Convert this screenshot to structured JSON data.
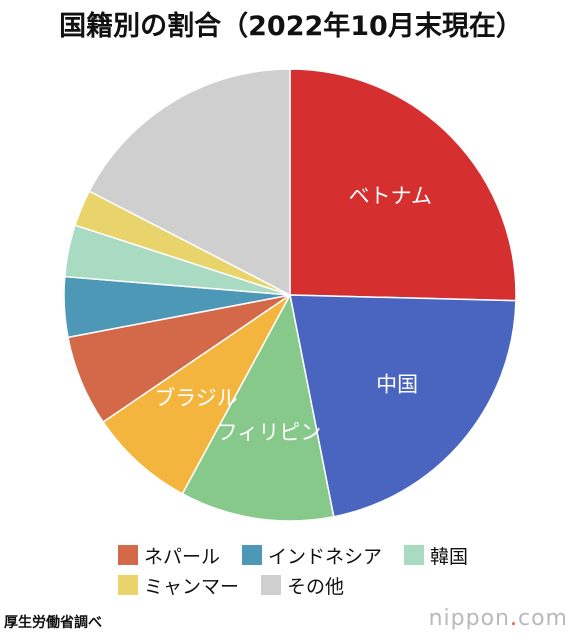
{
  "title": "国籍別の割合（2022年10月末現在）",
  "source": "厚生労働省調べ",
  "brand": {
    "text": "nippon",
    "dot": ".",
    "suffix": "com"
  },
  "chart_data": {
    "type": "pie",
    "title": "国籍別の割合（2022年10月末現在）",
    "slices": [
      {
        "name": "ベトナム",
        "value": 25.4,
        "color": "#d62f2f",
        "label_in_chart": true
      },
      {
        "name": "中国",
        "value": 21.5,
        "color": "#4a65bf",
        "label_in_chart": true
      },
      {
        "name": "フィリピン",
        "value": 11.0,
        "color": "#86c98a",
        "label_in_chart": true
      },
      {
        "name": "ブラジル",
        "value": 7.6,
        "color": "#f4b53e",
        "label_in_chart": true
      },
      {
        "name": "ネパール",
        "value": 6.5,
        "color": "#d4694a",
        "label_in_chart": false
      },
      {
        "name": "インドネシア",
        "value": 4.3,
        "color": "#4d97b7",
        "label_in_chart": false
      },
      {
        "name": "韓国",
        "value": 3.7,
        "color": "#a9dbc2",
        "label_in_chart": false
      },
      {
        "name": "ミャンマー",
        "value": 2.6,
        "color": "#e9d46c",
        "label_in_chart": false
      },
      {
        "name": "その他",
        "value": 17.4,
        "color": "#cfcfcf",
        "label_in_chart": false
      }
    ],
    "legend": {
      "placement": "bottom",
      "rows": [
        [
          "ネパール",
          "インドネシア",
          "韓国"
        ],
        [
          "ミャンマー",
          "その他"
        ]
      ]
    }
  }
}
